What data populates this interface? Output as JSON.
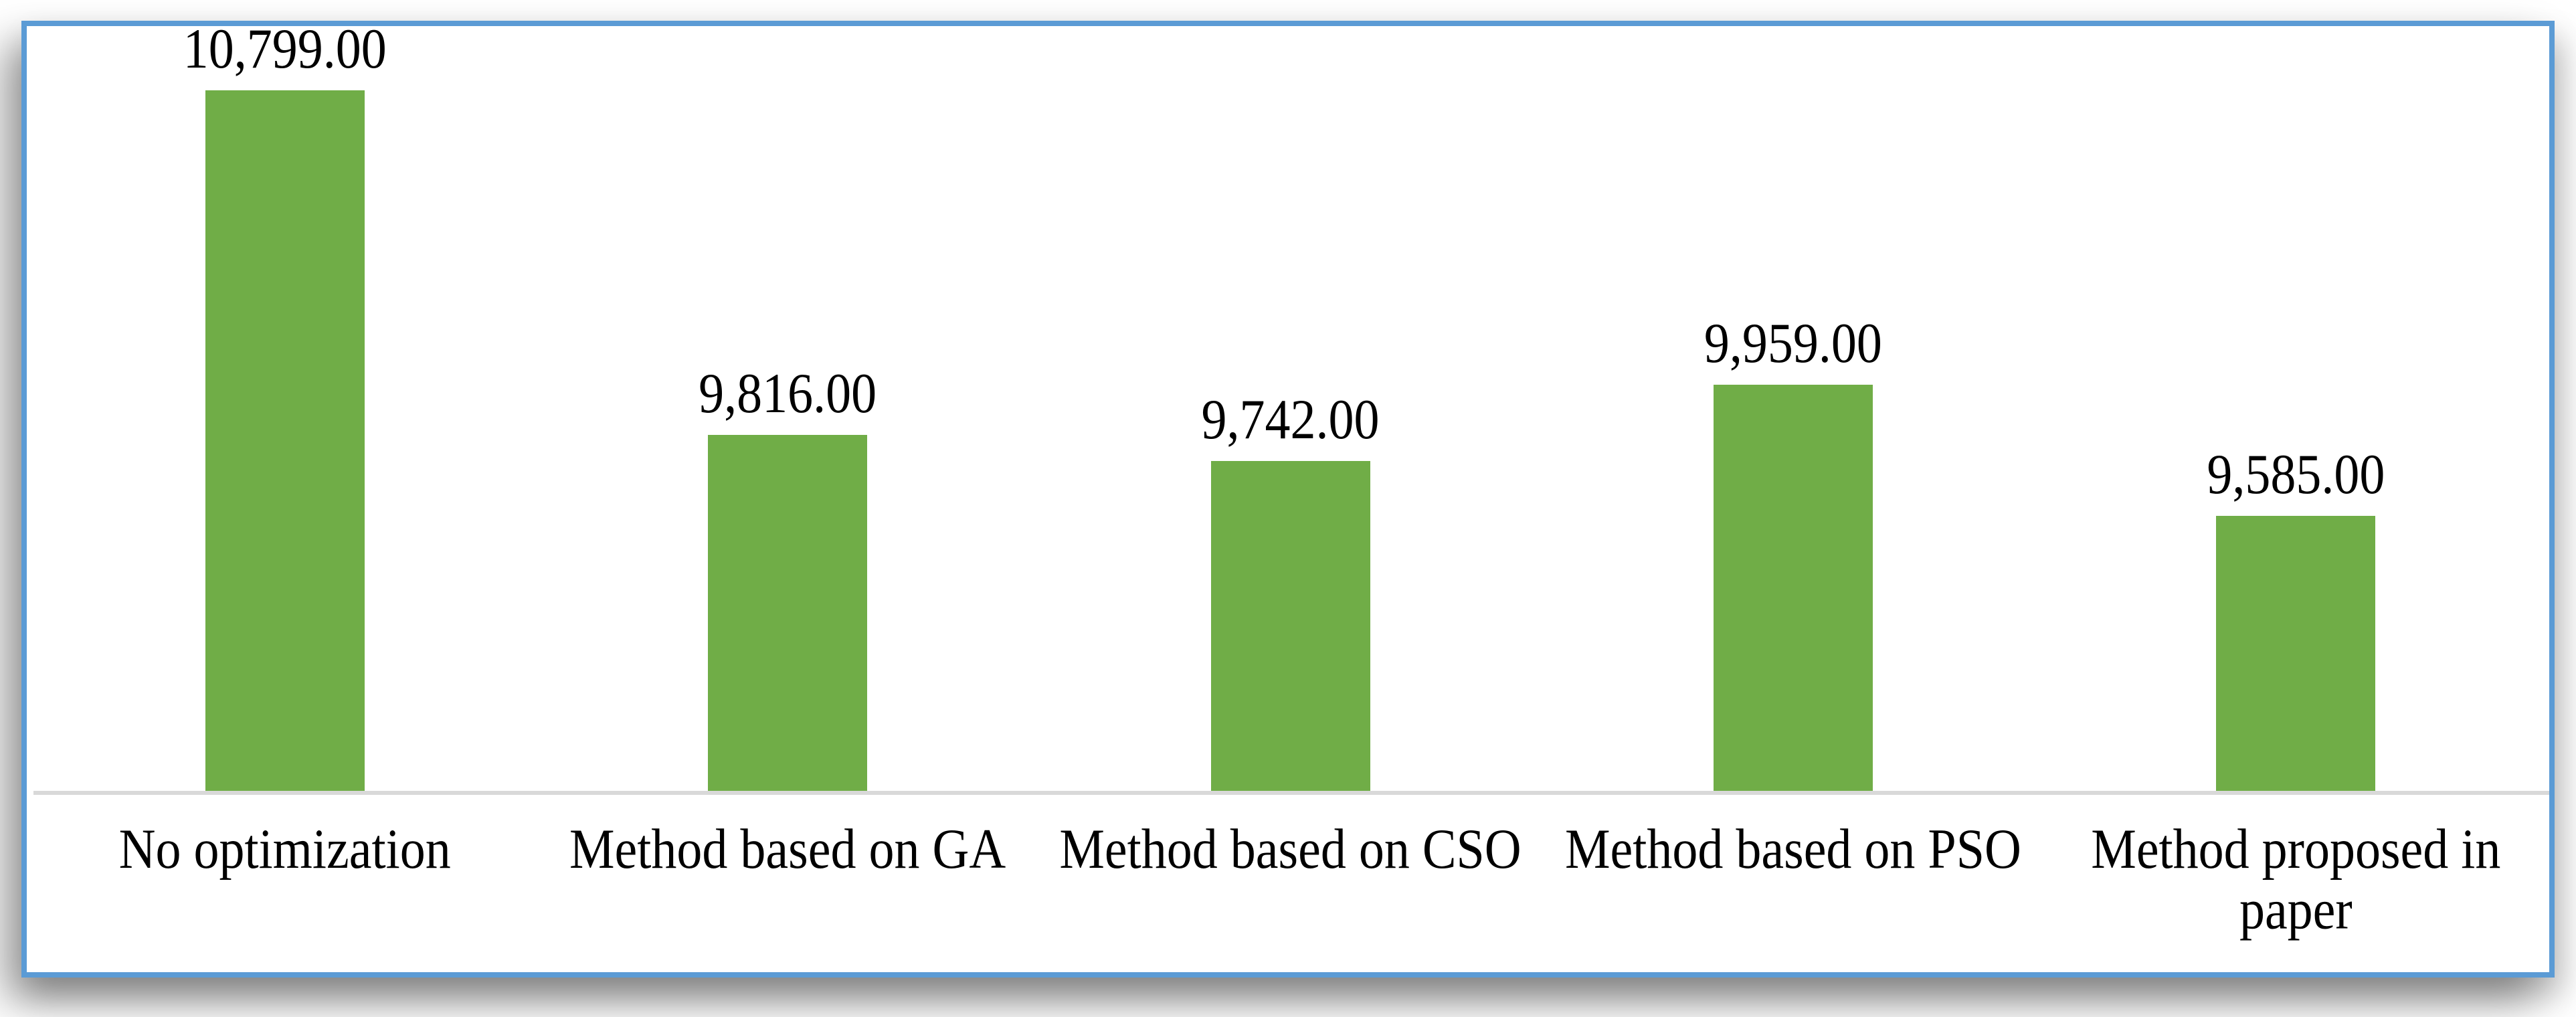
{
  "chart_data": {
    "type": "bar",
    "title": "",
    "xlabel": "",
    "ylabel": "",
    "categories": [
      "No optimization",
      "Method based on GA",
      "Method based on CSO",
      "Method based on PSO",
      "Method proposed in paper"
    ],
    "values": [
      10799,
      9816,
      9742,
      9959,
      9585
    ],
    "value_labels": [
      "10,799.00",
      "9,816.00",
      "9,742.00",
      "9,959.00",
      "9,585.00"
    ],
    "ylim": [
      8800,
      10900
    ],
    "grid": false,
    "legend": false,
    "colors": {
      "bar_fill": "#70ad47",
      "frame_border": "#5b9bd5",
      "axis_line": "#d9d9d9",
      "label_text": "#000000",
      "background": "#ffffff"
    }
  }
}
